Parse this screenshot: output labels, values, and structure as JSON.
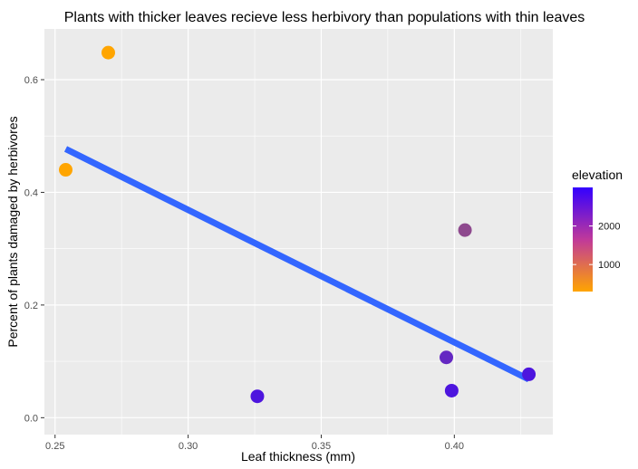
{
  "chart_data": {
    "type": "scatter",
    "title": "Plants with thicker leaves recieve less herbivory than populations with thin leaves",
    "xlabel": "Leaf thickness (mm)",
    "ylabel": "Percent of plants damaged by herbivores",
    "xlim": [
      0.246,
      0.437
    ],
    "ylim": [
      -0.03,
      0.69
    ],
    "x_ticks": [
      {
        "value": 0.25,
        "label": "0.25"
      },
      {
        "value": 0.3,
        "label": "0.30"
      },
      {
        "value": 0.35,
        "label": "0.35"
      },
      {
        "value": 0.4,
        "label": "0.40"
      }
    ],
    "y_ticks": [
      {
        "value": 0.0,
        "label": "0.0"
      },
      {
        "value": 0.2,
        "label": "0.2"
      },
      {
        "value": 0.4,
        "label": "0.4"
      },
      {
        "value": 0.6,
        "label": "0.6"
      }
    ],
    "grid": true,
    "points": [
      {
        "x": 0.27,
        "y": 0.648,
        "elevation": 300
      },
      {
        "x": 0.254,
        "y": 0.44,
        "elevation": 300
      },
      {
        "x": 0.404,
        "y": 0.333,
        "elevation": 1800
      },
      {
        "x": 0.397,
        "y": 0.107,
        "elevation": 2350
      },
      {
        "x": 0.428,
        "y": 0.077,
        "elevation": 2650
      },
      {
        "x": 0.399,
        "y": 0.048,
        "elevation": 2650
      },
      {
        "x": 0.326,
        "y": 0.038,
        "elevation": 2650
      }
    ],
    "trend_line": {
      "x": [
        0.254,
        0.428
      ],
      "y": [
        0.477,
        0.068
      ],
      "color": "#3366FF"
    },
    "legend": {
      "title": "elevation",
      "position": "right",
      "range": [
        300,
        3000
      ],
      "ticks": [
        {
          "value": 1000,
          "label": "1000"
        },
        {
          "value": 2000,
          "label": "2000"
        }
      ],
      "colors": {
        "low": "#FFA500",
        "high": "#3300FF"
      }
    },
    "panel_background": "#EBEBEB",
    "gridline_color": "#FFFFFF"
  }
}
